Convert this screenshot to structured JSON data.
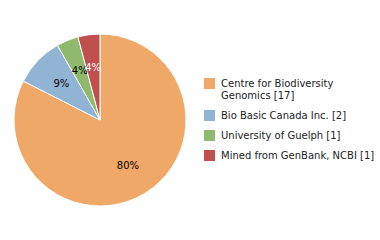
{
  "chart_data": {
    "type": "pie",
    "categories": [
      "Centre for Biodiversity\nGenomics [17]",
      "Bio Basic Canada Inc. [2]",
      "University of Guelph [1]",
      "Mined from GenBank, NCBI [1]"
    ],
    "values": [
      80,
      9,
      4,
      4
    ],
    "value_labels": [
      "80%",
      "9%",
      "4%",
      "4%"
    ],
    "colors": [
      "#f0a868",
      "#92b4d4",
      "#8fba6e",
      "#c0504d"
    ],
    "data_labels": true,
    "legend": "right"
  }
}
